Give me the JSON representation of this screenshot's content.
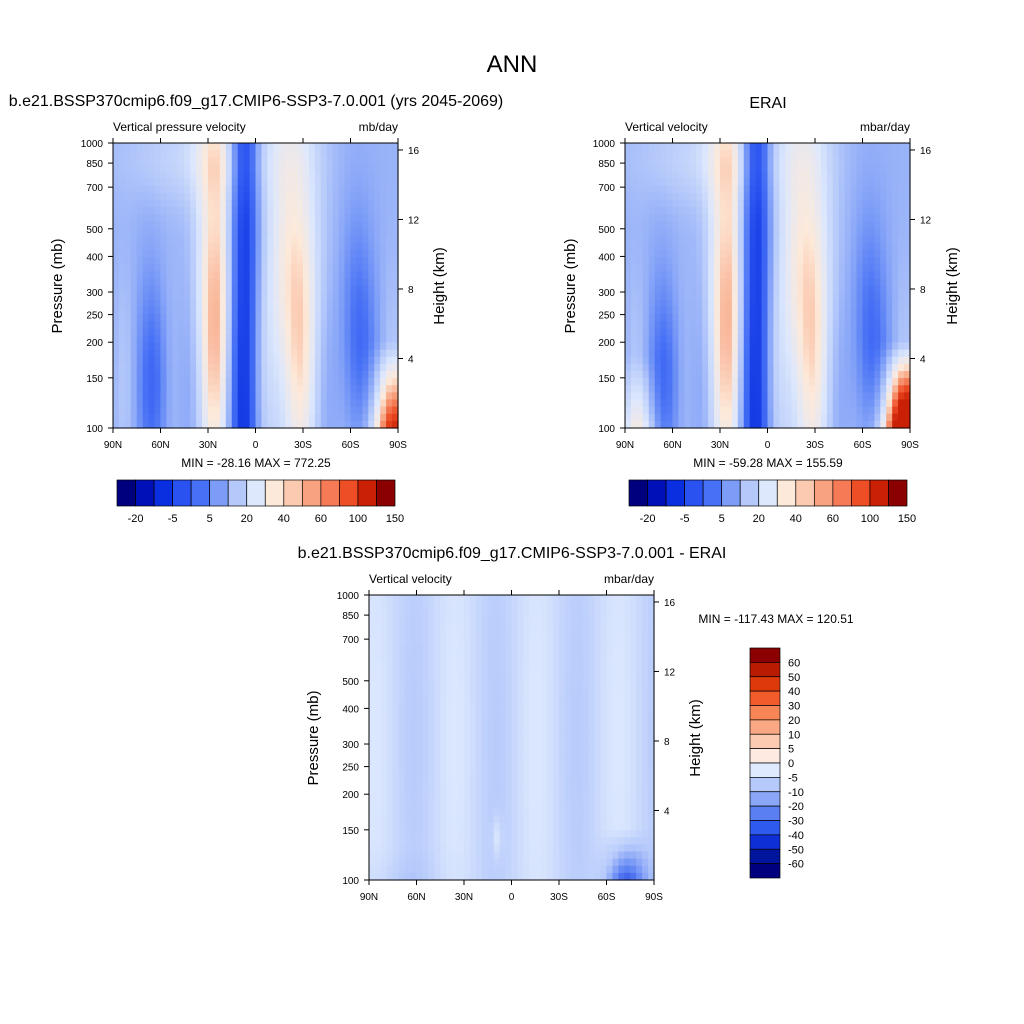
{
  "figure": {
    "title": "ANN"
  },
  "panels": [
    {
      "id": "model",
      "title": "b.e21.BSSP370cmip6.f09_g17.CMIP6-SSP3-7.0.001 (yrs 2045-2069)",
      "left_label": "Vertical pressure velocity",
      "right_label": "mb/day",
      "stats": "MIN = -28.16  MAX = 772.25"
    },
    {
      "id": "obs",
      "title": "ERAI",
      "left_label": "Vertical velocity",
      "right_label": "mbar/day",
      "stats": "MIN = -59.28  MAX = 155.59"
    },
    {
      "id": "diff",
      "title": "b.e21.BSSP370cmip6.f09_g17.CMIP6-SSP3-7.0.001 - ERAI",
      "left_label": "Vertical velocity",
      "right_label": "mbar/day",
      "stats": "MIN = -117.43  MAX = 120.51"
    }
  ],
  "chart_data": [
    {
      "type": "heatmap",
      "panel": "model",
      "ylabel": "Pressure (mb)",
      "y2label": "Height (km)",
      "xticks": [
        "90N",
        "60N",
        "30N",
        "0",
        "30S",
        "60S",
        "90S"
      ],
      "yticks": [
        1000,
        850,
        700,
        500,
        400,
        300,
        250,
        200,
        150,
        100
      ],
      "y2ticks": [
        4,
        8,
        12,
        16
      ],
      "colorbar_labels": [
        "-20",
        "-5",
        "5",
        "20",
        "40",
        "60",
        "100",
        "150"
      ],
      "colorbar_colors": [
        "#00007e",
        "#0010b8",
        "#0a2fe0",
        "#2a52f0",
        "#4670f5",
        "#7c9cf7",
        "#b4c8fa",
        "#dde8fd",
        "#fde9d9",
        "#fbcab0",
        "#f8a27f",
        "#f57a55",
        "#ee4e26",
        "#c92006",
        "#8b0000"
      ]
    },
    {
      "type": "heatmap",
      "panel": "obs",
      "ylabel": "Pressure (mb)",
      "y2label": "Height (km)",
      "xticks": [
        "90N",
        "60N",
        "30N",
        "0",
        "30S",
        "60S",
        "90S"
      ],
      "yticks": [
        1000,
        850,
        700,
        500,
        400,
        300,
        250,
        200,
        150,
        100
      ],
      "y2ticks": [
        4,
        8,
        12,
        16
      ],
      "colorbar_labels": [
        "-20",
        "-5",
        "5",
        "20",
        "40",
        "60",
        "100",
        "150"
      ],
      "colorbar_colors": [
        "#00007e",
        "#0010b8",
        "#0a2fe0",
        "#2a52f0",
        "#4670f5",
        "#7c9cf7",
        "#b4c8fa",
        "#dde8fd",
        "#fde9d9",
        "#fbcab0",
        "#f8a27f",
        "#f57a55",
        "#ee4e26",
        "#c92006",
        "#8b0000"
      ]
    },
    {
      "type": "heatmap",
      "panel": "diff",
      "ylabel": "Pressure (mb)",
      "y2label": "Height (km)",
      "xticks": [
        "90N",
        "60N",
        "30N",
        "0",
        "30S",
        "60S",
        "90S"
      ],
      "yticks": [
        1000,
        850,
        700,
        500,
        400,
        300,
        250,
        200,
        150,
        100
      ],
      "y2ticks": [
        4,
        8,
        12,
        16
      ],
      "colorbar_labels": [
        "60",
        "50",
        "40",
        "30",
        "20",
        "10",
        "5",
        "0",
        "-5",
        "-10",
        "-20",
        "-30",
        "-40",
        "-50",
        "-60"
      ],
      "colorbar_colors": [
        "#8b0000",
        "#b81a02",
        "#dd3a0c",
        "#f25c2c",
        "#f78556",
        "#faa884",
        "#fccab0",
        "#feeae0",
        "#dfeafe",
        "#b5c9fb",
        "#8aa6f7",
        "#5a7ff3",
        "#2f5aee",
        "#0f2fd6",
        "#00149e",
        "#00007e"
      ]
    }
  ]
}
